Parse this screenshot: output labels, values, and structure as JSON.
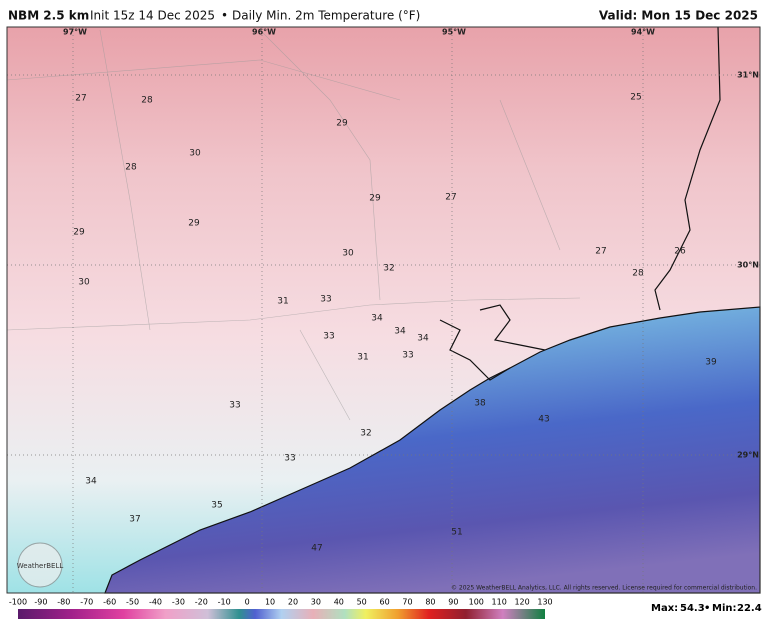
{
  "header": {
    "model": "NBM 2.5 km",
    "init": "Init 15z 14 Dec 2025",
    "separator": "•",
    "field": "Daily Min. 2m Temperature (°F)",
    "valid": "Valid: Mon 15 Dec 2025"
  },
  "map": {
    "longitudes": [
      "97°W",
      "96°W",
      "95°W",
      "94°W"
    ],
    "latitudes": [
      "31°N",
      "30°N",
      "29°N"
    ],
    "values": [
      27,
      28,
      29,
      25,
      30,
      28,
      29,
      27,
      29,
      29,
      30,
      32,
      27,
      26,
      28,
      30,
      31,
      33,
      34,
      34,
      34,
      33,
      31,
      33,
      39,
      38,
      33,
      43,
      32,
      33,
      34,
      35,
      37,
      51,
      47
    ],
    "copyright": "© 2025 WeatherBELL Analytics, LLC. All rights reserved. License required for commercial distribution.",
    "logo": "WeatherBELL"
  },
  "colorbar": {
    "ticks": [
      -100,
      -90,
      -80,
      -70,
      -60,
      -50,
      -40,
      -30,
      -20,
      -10,
      0,
      10,
      20,
      30,
      40,
      50,
      60,
      70,
      80,
      90,
      100,
      110,
      120,
      130
    ]
  },
  "footer": {
    "max_label": "Max:",
    "max": 54.3,
    "separator": "•",
    "min_label": "Min:",
    "min": 22.4
  }
}
